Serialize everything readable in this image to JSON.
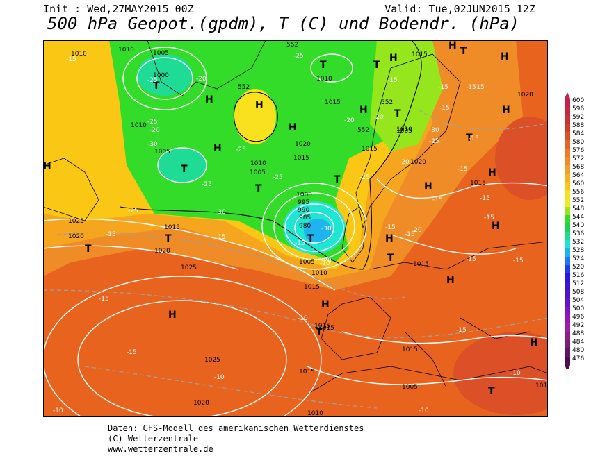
{
  "header": {
    "init": "Init : Wed,27MAY2015 00Z",
    "valid": "Valid: Tue,02JUN2015 12Z",
    "title": "500 hPa Geopot.(gpdm), T (C) und Bodendr. (hPa)"
  },
  "legend": {
    "levels": [
      "600",
      "596",
      "592",
      "588",
      "584",
      "580",
      "576",
      "572",
      "568",
      "564",
      "560",
      "556",
      "552",
      "548",
      "544",
      "540",
      "536",
      "532",
      "528",
      "524",
      "520",
      "516",
      "512",
      "508",
      "504",
      "500",
      "496",
      "492",
      "488",
      "484",
      "480",
      "476"
    ],
    "colors": [
      "#c81e4b",
      "#c8283c",
      "#c83232",
      "#d23c28",
      "#dc5028",
      "#e66428",
      "#f07828",
      "#f08c28",
      "#f0a028",
      "#f5b41e",
      "#fac814",
      "#fae11e",
      "#e6f01e",
      "#96e61e",
      "#32dc28",
      "#1ed250",
      "#1edc96",
      "#1ee6d2",
      "#1eb4f0",
      "#1e78f0",
      "#1e3cf0",
      "#2814e6",
      "#3c14d2",
      "#5014c8",
      "#6414c8",
      "#8214c8",
      "#9614b4",
      "#a01ea0",
      "#8c1e8c",
      "#781e78",
      "#641464",
      "#500a50"
    ]
  },
  "map": {
    "highs": [
      "H",
      "H",
      "H",
      "H",
      "H",
      "H",
      "H",
      "H",
      "H",
      "H",
      "H",
      "H",
      "H",
      "H",
      "H",
      "H",
      "H",
      "H"
    ],
    "lows": [
      "T",
      "T",
      "T",
      "T",
      "T",
      "T",
      "T",
      "T",
      "T",
      "T",
      "T",
      "T",
      "T",
      "T",
      "T"
    ],
    "pressure_labels": [
      "1010",
      "1010",
      "1005",
      "1000",
      "1005",
      "1010",
      "1010",
      "1015",
      "1020",
      "1015",
      "1010",
      "1005",
      "1015",
      "1015",
      "1020",
      "1010",
      "1005",
      "1000",
      "995",
      "990",
      "985",
      "980",
      "1025",
      "1020",
      "1015",
      "1020",
      "1025",
      "1005",
      "1010",
      "1015",
      "1015",
      "1015",
      "1015",
      "1015",
      "1025",
      "1020",
      "1015",
      "1010",
      "1005",
      "1020",
      "1015",
      "101"
    ],
    "temp_labels": [
      "-15",
      "-20",
      "-25",
      "-25",
      "-25",
      "-20",
      "-20",
      "-20",
      "-15",
      "-15",
      "-15",
      "-15",
      "-25",
      "-30",
      "-30",
      "-25",
      "-25",
      "-25",
      "-20",
      "-30",
      "-25",
      "-30",
      "-25",
      "-15",
      "-15",
      "-15",
      "-25",
      "-20",
      "-20",
      "-20",
      "-15",
      "-15",
      "-15",
      "-15",
      "-15",
      "-15",
      "-15",
      "-10",
      "-10",
      "-15",
      "-15",
      "-10",
      "-10",
      "-15",
      "-10",
      "-15",
      "-15"
    ],
    "geopot_labels": [
      "552",
      "552",
      "552",
      "552"
    ]
  },
  "footer": {
    "line1": "Daten: GFS-Modell des amerikanischen Wetterdienstes",
    "line2": "(C) Wetterzentrale",
    "line3": "www.wetterzentrale.de"
  }
}
